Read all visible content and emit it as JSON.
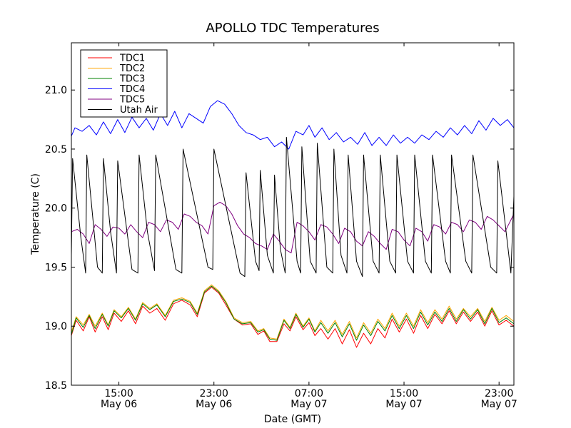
{
  "chart_data": {
    "type": "line",
    "title": "APOLLO TDC Temperatures",
    "xlabel": "Date (GMT)",
    "ylabel": "Temperature (C)",
    "x_units": "hours since 2008-05-06 11:00 GMT",
    "xlim": [
      0,
      37.25
    ],
    "ylim": [
      18.5,
      21.4
    ],
    "yticks": [
      18.5,
      19.0,
      19.5,
      20.0,
      20.5,
      21.0
    ],
    "ytick_labels": [
      "18.5",
      "19.0",
      "19.5",
      "20.0",
      "20.5",
      "21.0"
    ],
    "xticks": [
      {
        "x": 4,
        "line1": "15:00",
        "line2": "May 06"
      },
      {
        "x": 12,
        "line1": "23:00",
        "line2": "May 06"
      },
      {
        "x": 20,
        "line1": "07:00",
        "line2": "May 07"
      },
      {
        "x": 28,
        "line1": "15:00",
        "line2": "May 07"
      },
      {
        "x": 36,
        "line1": "23:00",
        "line2": "May 07"
      }
    ],
    "legend_position": "top-left",
    "series": [
      {
        "name": "TDC1",
        "color": "#ff0000",
        "x": [
          0,
          0.4,
          1.0,
          1.5,
          2.0,
          2.6,
          3.1,
          3.6,
          4.2,
          4.8,
          5.4,
          6.0,
          6.6,
          7.2,
          7.9,
          8.6,
          9.3,
          10.0,
          10.6,
          11.2,
          11.8,
          12.4,
          13.0,
          13.7,
          14.4,
          15.1,
          15.7,
          16.2,
          16.7,
          17.3,
          17.9,
          18.4,
          18.9,
          19.5,
          20.0,
          20.5,
          21.0,
          21.6,
          22.2,
          22.8,
          23.4,
          24.0,
          24.6,
          25.2,
          25.8,
          26.4,
          27.0,
          27.6,
          28.2,
          28.8,
          29.4,
          30.0,
          30.6,
          31.2,
          31.8,
          32.4,
          33.0,
          33.6,
          34.2,
          34.8,
          35.4,
          36.0,
          36.6,
          37.25
        ],
        "values": [
          18.92,
          19.05,
          18.96,
          19.08,
          18.95,
          19.08,
          18.97,
          19.11,
          19.04,
          19.13,
          19.02,
          19.17,
          19.11,
          19.15,
          19.05,
          19.19,
          19.22,
          19.18,
          19.08,
          19.28,
          19.33,
          19.28,
          19.18,
          19.06,
          19.01,
          19.02,
          18.93,
          18.96,
          18.87,
          18.87,
          19.02,
          18.96,
          19.08,
          18.97,
          19.03,
          18.92,
          18.98,
          18.89,
          18.98,
          18.85,
          18.97,
          18.82,
          18.94,
          18.85,
          18.98,
          18.9,
          19.06,
          18.95,
          19.06,
          18.94,
          19.09,
          18.98,
          19.1,
          19.02,
          19.13,
          19.02,
          19.12,
          19.04,
          19.12,
          19.0,
          19.13,
          19.01,
          19.05,
          19.0
        ]
      },
      {
        "name": "TDC2",
        "color": "#ffa500",
        "x": [
          0,
          0.4,
          1.0,
          1.5,
          2.0,
          2.6,
          3.1,
          3.6,
          4.2,
          4.8,
          5.4,
          6.0,
          6.6,
          7.2,
          7.9,
          8.6,
          9.3,
          10.0,
          10.6,
          11.2,
          11.8,
          12.4,
          13.0,
          13.7,
          14.4,
          15.1,
          15.7,
          16.2,
          16.7,
          17.3,
          17.9,
          18.4,
          18.9,
          19.5,
          20.0,
          20.5,
          21.0,
          21.6,
          22.2,
          22.8,
          23.4,
          24.0,
          24.6,
          25.2,
          25.8,
          26.4,
          27.0,
          27.6,
          28.2,
          28.8,
          29.4,
          30.0,
          30.6,
          31.2,
          31.8,
          32.4,
          33.0,
          33.6,
          34.2,
          34.8,
          35.4,
          36.0,
          36.6,
          37.25
        ],
        "values": [
          18.95,
          19.08,
          19.01,
          19.1,
          19.0,
          19.11,
          19.01,
          19.14,
          19.08,
          19.16,
          19.06,
          19.2,
          19.15,
          19.19,
          19.09,
          19.22,
          19.24,
          19.21,
          19.11,
          19.3,
          19.35,
          19.3,
          19.21,
          19.07,
          19.03,
          19.04,
          18.96,
          18.98,
          18.9,
          18.89,
          19.06,
          18.99,
          19.11,
          19.0,
          19.07,
          18.96,
          19.05,
          18.96,
          19.05,
          18.93,
          19.04,
          18.9,
          19.03,
          18.94,
          19.06,
          18.98,
          19.11,
          19.0,
          19.11,
          19.0,
          19.14,
          19.03,
          19.14,
          19.06,
          19.17,
          19.06,
          19.15,
          19.08,
          19.15,
          19.04,
          19.16,
          19.05,
          19.09,
          19.04
        ]
      },
      {
        "name": "TDC3",
        "color": "#008000",
        "x": [
          0,
          0.4,
          1.0,
          1.5,
          2.0,
          2.6,
          3.1,
          3.6,
          4.2,
          4.8,
          5.4,
          6.0,
          6.6,
          7.2,
          7.9,
          8.6,
          9.3,
          10.0,
          10.6,
          11.2,
          11.8,
          12.4,
          13.0,
          13.7,
          14.4,
          15.1,
          15.7,
          16.2,
          16.7,
          17.3,
          17.9,
          18.4,
          18.9,
          19.5,
          20.0,
          20.5,
          21.0,
          21.6,
          22.2,
          22.8,
          23.4,
          24.0,
          24.6,
          25.2,
          25.8,
          26.4,
          27.0,
          27.6,
          28.2,
          28.8,
          29.4,
          30.0,
          30.6,
          31.2,
          31.8,
          32.4,
          33.0,
          33.6,
          34.2,
          34.8,
          35.4,
          36.0,
          36.6,
          37.25
        ],
        "values": [
          18.93,
          19.07,
          18.99,
          19.09,
          18.98,
          19.1,
          19.0,
          19.13,
          19.07,
          19.15,
          19.05,
          19.19,
          19.14,
          19.18,
          19.08,
          19.21,
          19.23,
          19.2,
          19.1,
          19.29,
          19.34,
          19.29,
          19.2,
          19.06,
          19.02,
          19.03,
          18.95,
          18.97,
          18.89,
          18.88,
          19.05,
          18.98,
          19.1,
          18.99,
          19.06,
          18.95,
          19.03,
          18.94,
          19.03,
          18.91,
          19.02,
          18.88,
          19.01,
          18.92,
          19.04,
          18.96,
          19.09,
          18.98,
          19.09,
          18.98,
          19.12,
          19.01,
          19.12,
          19.04,
          19.15,
          19.04,
          19.14,
          19.06,
          19.14,
          19.02,
          19.15,
          19.03,
          19.07,
          19.02
        ]
      },
      {
        "name": "TDC4",
        "color": "#0000ff",
        "x": [
          0,
          0.3,
          0.9,
          1.5,
          2.1,
          2.7,
          3.3,
          3.9,
          4.5,
          5.1,
          5.7,
          6.3,
          6.9,
          7.5,
          8.1,
          8.7,
          9.3,
          9.9,
          10.5,
          11.1,
          11.7,
          12.3,
          12.9,
          13.5,
          14.1,
          14.7,
          15.3,
          15.9,
          16.5,
          17.1,
          17.7,
          18.3,
          18.9,
          19.5,
          20.0,
          20.5,
          21.1,
          21.7,
          22.3,
          22.9,
          23.5,
          24.1,
          24.7,
          25.3,
          25.9,
          26.5,
          27.1,
          27.7,
          28.3,
          28.9,
          29.5,
          30.1,
          30.7,
          31.3,
          31.9,
          32.5,
          33.1,
          33.7,
          34.3,
          34.9,
          35.5,
          36.1,
          36.7,
          37.25
        ],
        "values": [
          20.61,
          20.68,
          20.65,
          20.7,
          20.62,
          20.73,
          20.63,
          20.75,
          20.64,
          20.77,
          20.68,
          20.76,
          20.66,
          20.8,
          20.7,
          20.82,
          20.68,
          20.8,
          20.76,
          20.72,
          20.86,
          20.91,
          20.88,
          20.8,
          20.7,
          20.64,
          20.62,
          20.58,
          20.6,
          20.52,
          20.56,
          20.5,
          20.65,
          20.62,
          20.7,
          20.6,
          20.68,
          20.58,
          20.64,
          20.56,
          20.6,
          20.54,
          20.64,
          20.53,
          20.6,
          20.53,
          20.62,
          20.55,
          20.6,
          20.55,
          20.62,
          20.58,
          20.65,
          20.6,
          20.68,
          20.62,
          20.7,
          20.63,
          20.74,
          20.66,
          20.76,
          20.7,
          20.75,
          20.68
        ]
      },
      {
        "name": "TDC5",
        "color": "#800080",
        "x": [
          0,
          0.5,
          1.0,
          1.5,
          2.0,
          2.5,
          3.0,
          3.5,
          4.0,
          4.5,
          5.0,
          5.5,
          6.0,
          6.5,
          7.0,
          7.5,
          8.0,
          8.5,
          9.0,
          9.5,
          10.0,
          10.5,
          11.0,
          11.5,
          12.0,
          12.5,
          13.0,
          13.5,
          14.0,
          14.5,
          15.0,
          15.5,
          16.0,
          16.5,
          17.0,
          17.5,
          18.0,
          18.5,
          19.0,
          19.5,
          20.0,
          20.5,
          21.0,
          21.5,
          22.0,
          22.5,
          23.0,
          23.5,
          24.0,
          24.5,
          25.0,
          25.5,
          26.0,
          26.5,
          27.0,
          27.5,
          28.0,
          28.5,
          29.0,
          29.5,
          30.0,
          30.5,
          31.0,
          31.5,
          32.0,
          32.5,
          33.0,
          33.5,
          34.0,
          34.5,
          35.0,
          35.5,
          36.0,
          36.5,
          37.25
        ],
        "values": [
          19.8,
          19.82,
          19.78,
          19.7,
          19.86,
          19.82,
          19.76,
          19.84,
          19.83,
          19.78,
          19.86,
          19.8,
          19.75,
          19.88,
          19.86,
          19.8,
          19.9,
          19.88,
          19.82,
          19.95,
          19.93,
          19.88,
          19.85,
          19.78,
          20.02,
          20.05,
          20.02,
          19.95,
          19.85,
          19.78,
          19.75,
          19.7,
          19.68,
          19.65,
          19.78,
          19.72,
          19.65,
          19.62,
          19.88,
          19.85,
          19.8,
          19.73,
          19.86,
          19.84,
          19.78,
          19.7,
          19.83,
          19.8,
          19.72,
          19.68,
          19.8,
          19.76,
          19.7,
          19.65,
          19.82,
          19.8,
          19.73,
          19.68,
          19.83,
          19.8,
          19.72,
          19.86,
          19.84,
          19.78,
          19.88,
          19.86,
          19.8,
          19.9,
          19.88,
          19.82,
          19.93,
          19.9,
          19.85,
          19.8,
          19.95
        ]
      },
      {
        "name": "Utah Air",
        "color": "#000000",
        "x": [
          0,
          0.1,
          0.8,
          1.2,
          1.3,
          2.2,
          2.6,
          2.7,
          3.3,
          3.8,
          3.9,
          5.1,
          5.6,
          5.7,
          6.4,
          7.0,
          7.1,
          8.8,
          9.3,
          9.4,
          11.5,
          11.9,
          12.0,
          14.2,
          14.6,
          14.7,
          15.5,
          15.8,
          15.9,
          16.5,
          17.0,
          17.1,
          17.6,
          18.0,
          18.1,
          19.0,
          19.3,
          19.4,
          20.1,
          20.6,
          20.7,
          21.5,
          22.0,
          22.1,
          22.7,
          23.2,
          23.3,
          24.0,
          24.5,
          24.6,
          25.4,
          25.9,
          26.0,
          26.8,
          27.3,
          27.4,
          28.3,
          28.8,
          28.9,
          29.8,
          30.3,
          30.4,
          31.5,
          31.9,
          32.0,
          33.2,
          33.7,
          33.8,
          35.3,
          35.8,
          35.9,
          37.0,
          37.25
        ],
        "values": [
          19.6,
          20.42,
          19.75,
          19.45,
          20.45,
          19.5,
          19.45,
          20.42,
          19.8,
          19.45,
          20.4,
          19.48,
          19.45,
          20.45,
          19.8,
          19.47,
          20.45,
          19.48,
          19.45,
          20.5,
          19.5,
          19.48,
          20.5,
          19.45,
          19.42,
          20.3,
          19.55,
          19.47,
          20.32,
          19.6,
          19.45,
          20.28,
          19.65,
          19.45,
          20.6,
          19.55,
          19.45,
          20.52,
          19.55,
          19.45,
          20.55,
          19.5,
          19.45,
          20.5,
          19.6,
          19.45,
          20.45,
          19.55,
          19.42,
          20.45,
          19.55,
          19.45,
          20.45,
          19.55,
          19.45,
          20.45,
          19.55,
          19.45,
          20.45,
          19.55,
          19.45,
          20.45,
          19.55,
          19.45,
          20.45,
          19.55,
          19.45,
          20.45,
          19.5,
          19.45,
          20.4,
          19.45,
          20.1
        ]
      }
    ]
  }
}
